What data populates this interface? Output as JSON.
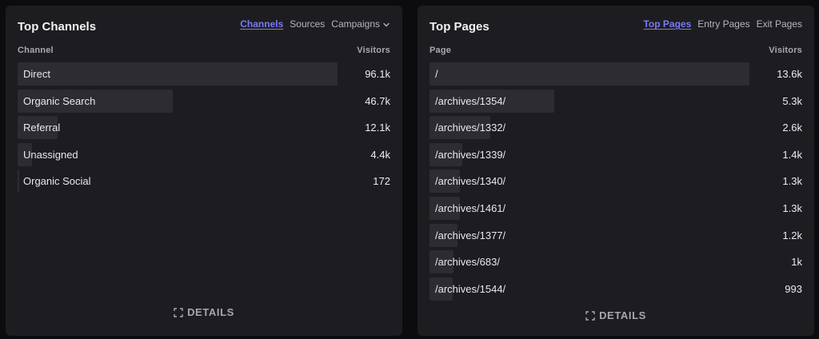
{
  "channels": {
    "title": "Top Channels",
    "tabs": [
      {
        "label": "Channels",
        "active": true
      },
      {
        "label": "Sources",
        "active": false
      },
      {
        "label": "Campaigns",
        "active": false
      }
    ],
    "col_name": "Channel",
    "col_value": "Visitors",
    "rows": [
      {
        "label": "Direct",
        "value": "96.1k",
        "fraction": 1.0
      },
      {
        "label": "Organic Search",
        "value": "46.7k",
        "fraction": 0.486
      },
      {
        "label": "Referral",
        "value": "12.1k",
        "fraction": 0.126
      },
      {
        "label": "Unassigned",
        "value": "4.4k",
        "fraction": 0.046
      },
      {
        "label": "Organic Social",
        "value": "172",
        "fraction": 0.002
      }
    ],
    "details_label": "DETAILS"
  },
  "pages": {
    "title": "Top Pages",
    "tabs": [
      {
        "label": "Top Pages",
        "active": true
      },
      {
        "label": "Entry Pages",
        "active": false
      },
      {
        "label": "Exit Pages",
        "active": false
      }
    ],
    "col_name": "Page",
    "col_value": "Visitors",
    "rows": [
      {
        "label": "/",
        "value": "13.6k",
        "fraction": 1.0
      },
      {
        "label": "/archives/1354/",
        "value": "5.3k",
        "fraction": 0.39
      },
      {
        "label": "/archives/1332/",
        "value": "2.6k",
        "fraction": 0.191
      },
      {
        "label": "/archives/1339/",
        "value": "1.4k",
        "fraction": 0.103
      },
      {
        "label": "/archives/1340/",
        "value": "1.3k",
        "fraction": 0.096
      },
      {
        "label": "/archives/1461/",
        "value": "1.3k",
        "fraction": 0.096
      },
      {
        "label": "/archives/1377/",
        "value": "1.2k",
        "fraction": 0.088
      },
      {
        "label": "/archives/683/",
        "value": "1k",
        "fraction": 0.074
      },
      {
        "label": "/archives/1544/",
        "value": "993",
        "fraction": 0.073
      }
    ],
    "details_label": "DETAILS"
  }
}
